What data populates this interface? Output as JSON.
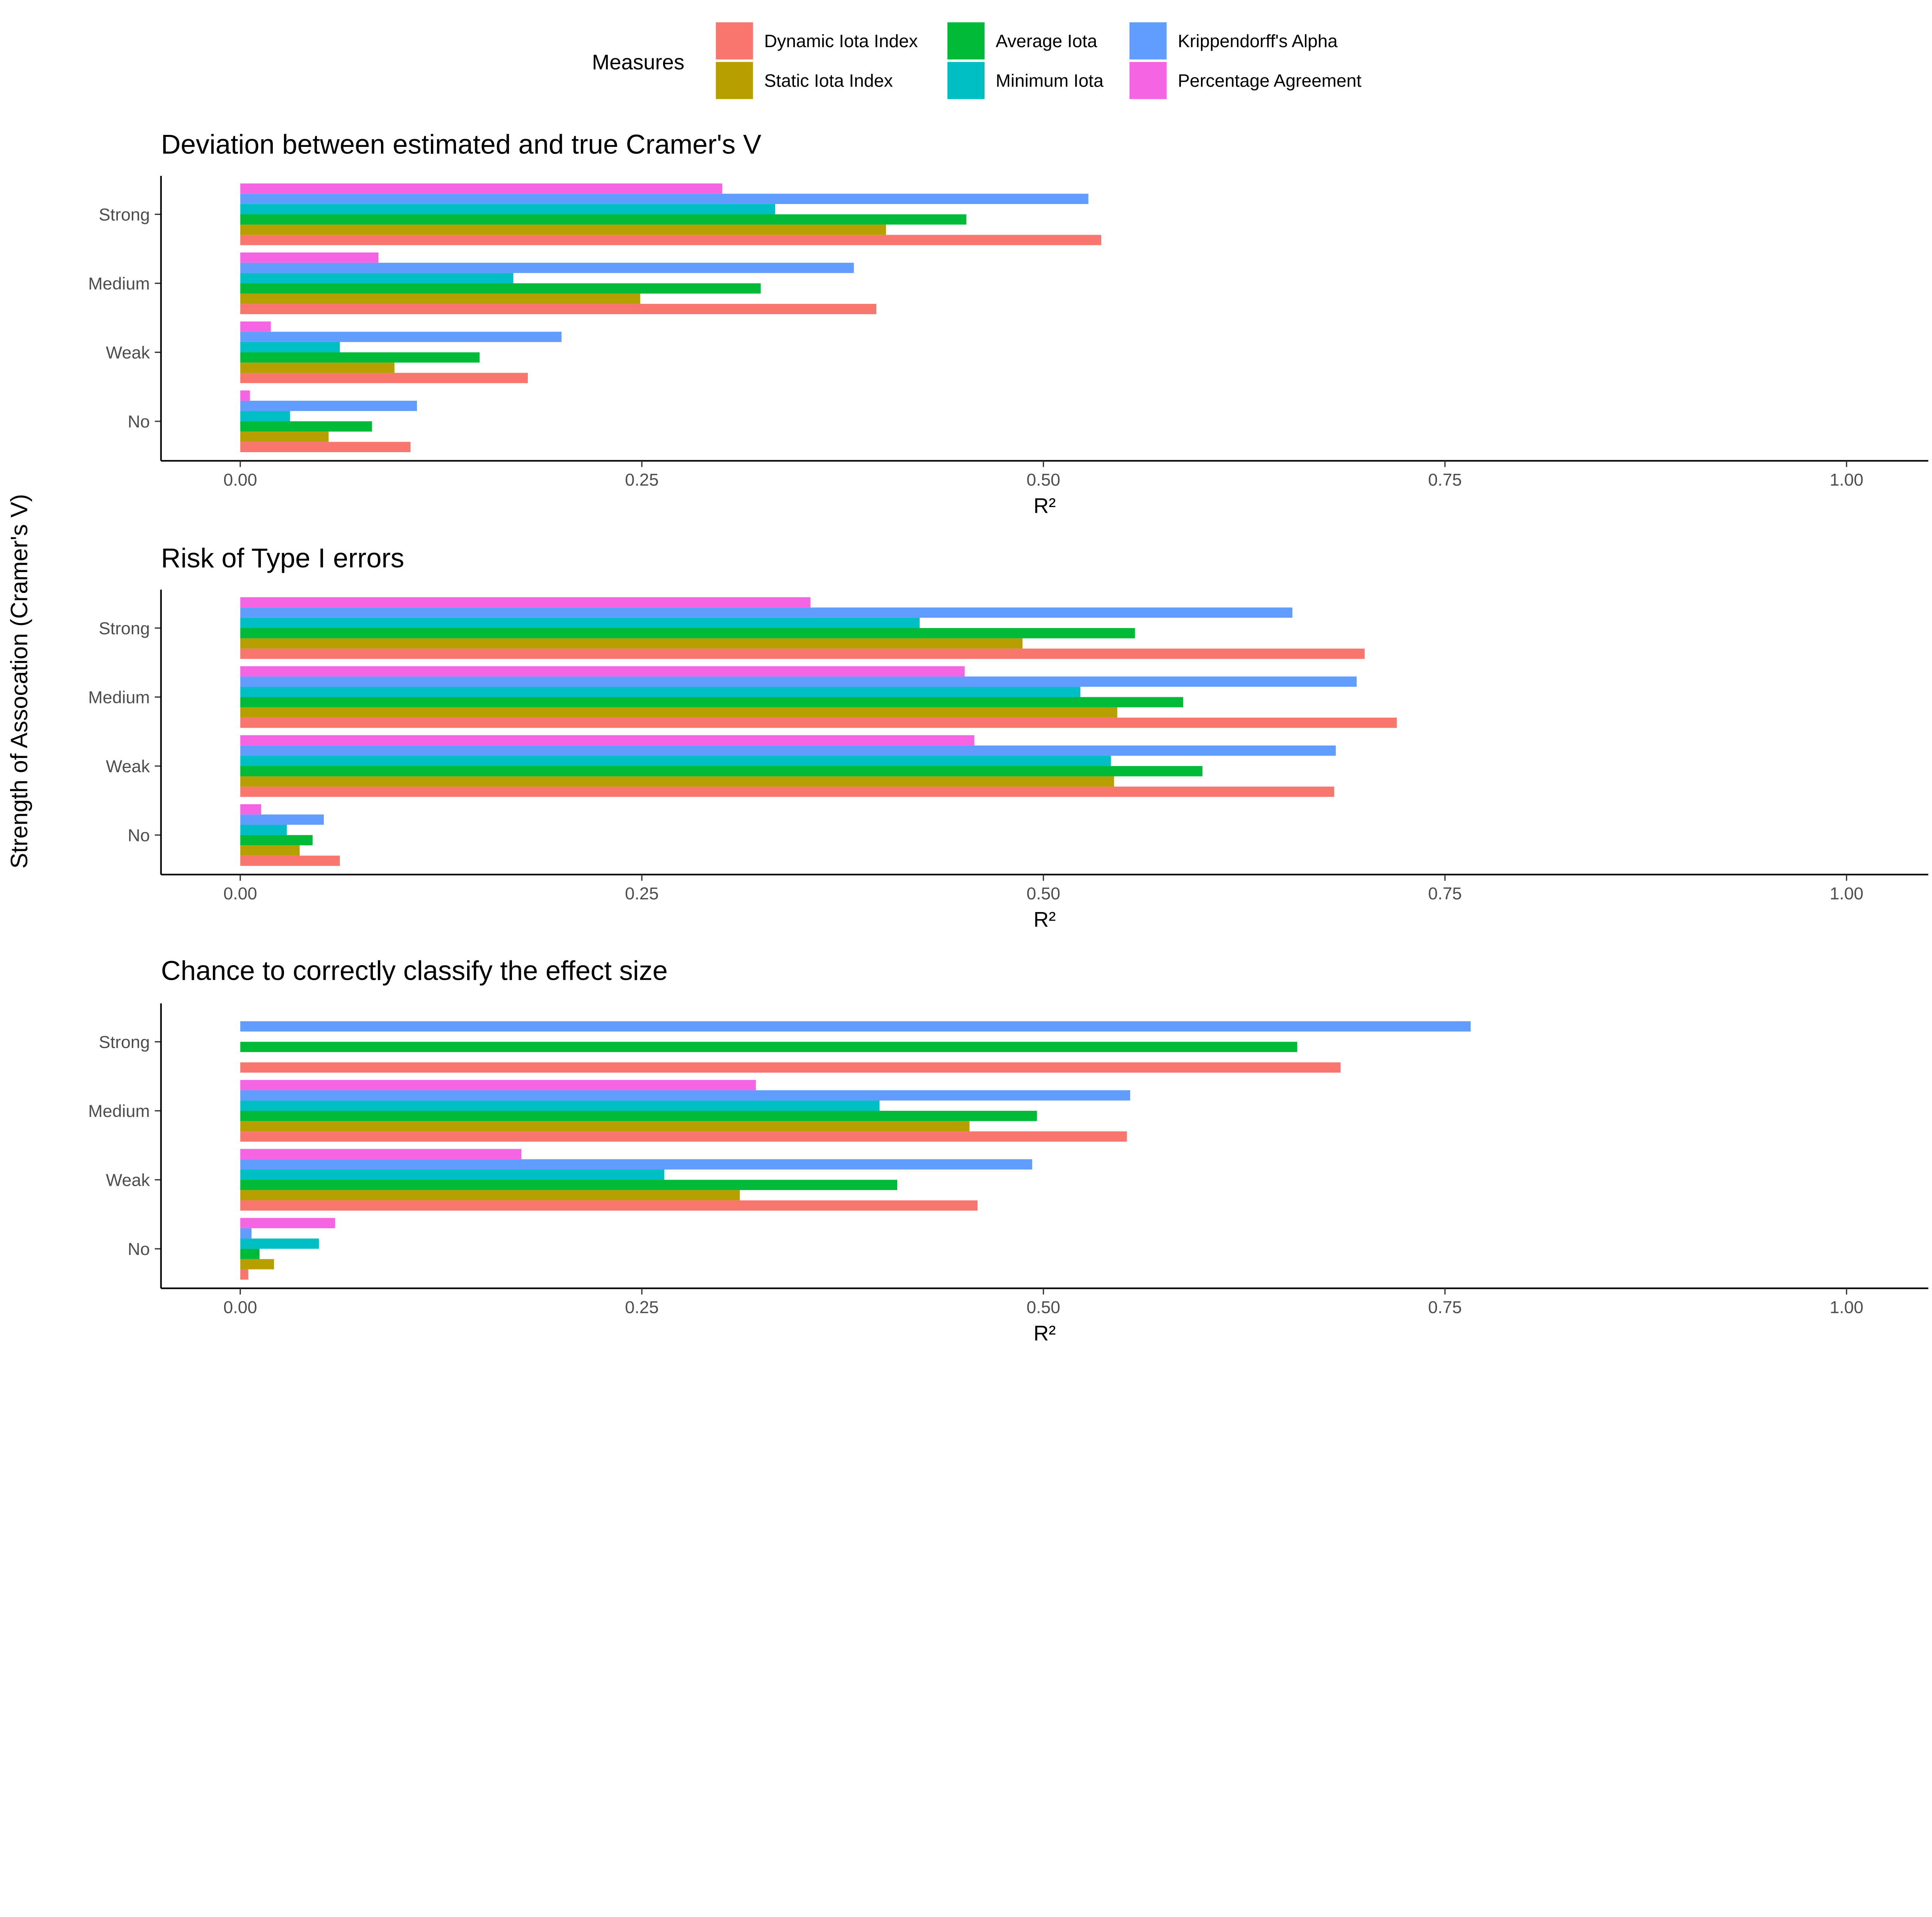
{
  "chart_data": {
    "type": "bar",
    "orientation": "horizontal",
    "ylabel": "Strength of Assocation (Cramer's V)",
    "legend": {
      "title": "Measures",
      "placement": "top",
      "entries": [
        "Dynamic Iota Index",
        "Static Iota Index",
        "Average Iota",
        "Minimum Iota",
        "Krippendorff's Alpha",
        "Percentage Agreement"
      ]
    },
    "colors": [
      "#F8766D",
      "#B79F00",
      "#00BA38",
      "#00BFC4",
      "#619CFF",
      "#F564E3"
    ],
    "categories": [
      "Strong",
      "Medium",
      "Weak",
      "No"
    ],
    "xlim": [
      0,
      1
    ],
    "xticks": [
      "0.00",
      "0.25",
      "0.50",
      "0.75",
      "1.00"
    ],
    "grid": false,
    "panels": [
      {
        "title": "Deviation between estimated and true Cramer's V",
        "xlabel": "R²",
        "series": [
          {
            "name": "Dynamic Iota Index",
            "values": [
              0.536,
              0.396,
              0.179,
              0.106
            ]
          },
          {
            "name": "Static Iota Index",
            "values": [
              0.402,
              0.249,
              0.096,
              0.055
            ]
          },
          {
            "name": "Average Iota",
            "values": [
              0.452,
              0.324,
              0.149,
              0.082
            ]
          },
          {
            "name": "Minimum Iota",
            "values": [
              0.333,
              0.17,
              0.062,
              0.031
            ]
          },
          {
            "name": "Krippendorff's Alpha",
            "values": [
              0.528,
              0.382,
              0.2,
              0.11
            ]
          },
          {
            "name": "Percentage Agreement",
            "values": [
              0.3,
              0.086,
              0.019,
              0.006
            ]
          }
        ]
      },
      {
        "title": "Risk of Type I errors",
        "xlabel": "R²",
        "series": [
          {
            "name": "Dynamic Iota Index",
            "values": [
              0.7,
              0.72,
              0.681,
              0.062
            ]
          },
          {
            "name": "Static Iota Index",
            "values": [
              0.487,
              0.546,
              0.544,
              0.037
            ]
          },
          {
            "name": "Average Iota",
            "values": [
              0.557,
              0.587,
              0.599,
              0.045
            ]
          },
          {
            "name": "Minimum Iota",
            "values": [
              0.423,
              0.523,
              0.542,
              0.029
            ]
          },
          {
            "name": "Krippendorff's Alpha",
            "values": [
              0.655,
              0.695,
              0.682,
              0.052
            ]
          },
          {
            "name": "Percentage Agreement",
            "values": [
              0.355,
              0.451,
              0.457,
              0.013
            ]
          }
        ]
      },
      {
        "title": "Chance to correctly classify the effect size",
        "xlabel": "R²",
        "series": [
          {
            "name": "Dynamic Iota Index",
            "values": [
              0.685,
              0.552,
              0.459,
              0.005
            ]
          },
          {
            "name": "Static Iota Index",
            "values": [
              null,
              0.454,
              0.311,
              0.021
            ]
          },
          {
            "name": "Average Iota",
            "values": [
              0.658,
              0.496,
              0.409,
              0.012
            ]
          },
          {
            "name": "Minimum Iota",
            "values": [
              null,
              0.398,
              0.264,
              0.049
            ]
          },
          {
            "name": "Krippendorff's Alpha",
            "values": [
              0.766,
              0.554,
              0.493,
              0.007
            ]
          },
          {
            "name": "Percentage Agreement",
            "values": [
              null,
              0.321,
              0.175,
              0.059
            ]
          }
        ]
      }
    ]
  }
}
